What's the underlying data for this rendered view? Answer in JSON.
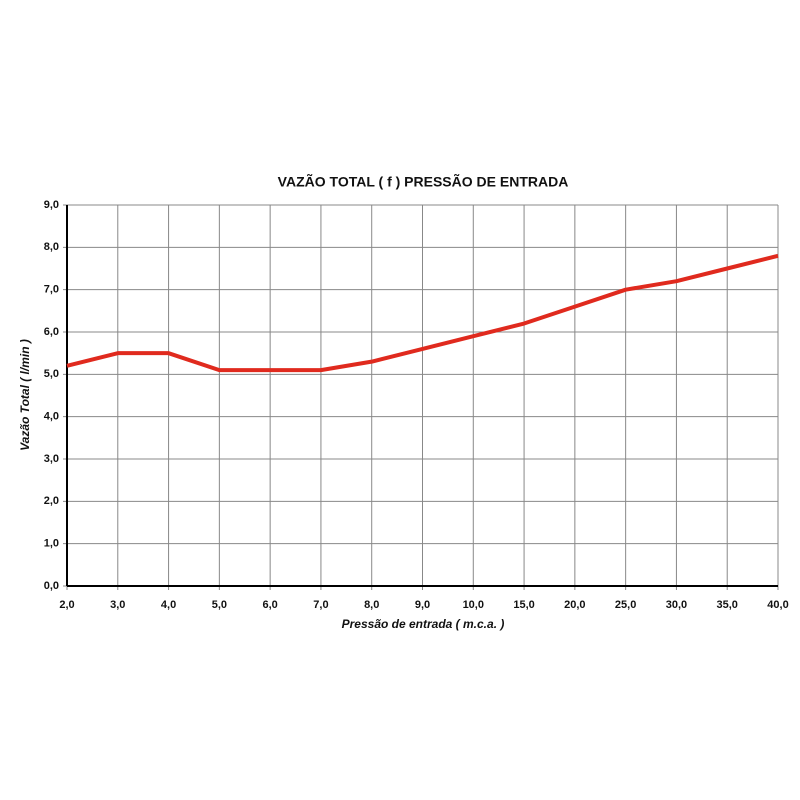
{
  "chart_data": {
    "type": "line",
    "title": "VAZÃO TOTAL ( f ) PRESSÃO DE ENTRADA",
    "x_label": "Pressão de entrada ( m.c.a. )",
    "y_label": "Vazão Total ( l/min )",
    "categories": [
      "2,0",
      "3,0",
      "4,0",
      "5,0",
      "6,0",
      "7,0",
      "8,0",
      "9,0",
      "10,0",
      "15,0",
      "20,0",
      "25,0",
      "30,0",
      "35,0",
      "40,0"
    ],
    "values": [
      5.2,
      5.5,
      5.5,
      5.1,
      5.1,
      5.1,
      5.3,
      5.6,
      5.9,
      6.2,
      6.6,
      7.0,
      7.2,
      7.5,
      7.8
    ],
    "color": "#e02a1e",
    "ylim": [
      0,
      9
    ],
    "yticks": [
      {
        "value": 0,
        "label": "0,0"
      },
      {
        "value": 1,
        "label": "1,0"
      },
      {
        "value": 2,
        "label": "2,0"
      },
      {
        "value": 3,
        "label": "3,0"
      },
      {
        "value": 4,
        "label": "4,0"
      },
      {
        "value": 5,
        "label": "5,0"
      },
      {
        "value": 6,
        "label": "6,0"
      },
      {
        "value": 7,
        "label": "7,0"
      },
      {
        "value": 8,
        "label": "8,0"
      },
      {
        "value": 9,
        "label": "9,0"
      }
    ],
    "grid": true
  }
}
